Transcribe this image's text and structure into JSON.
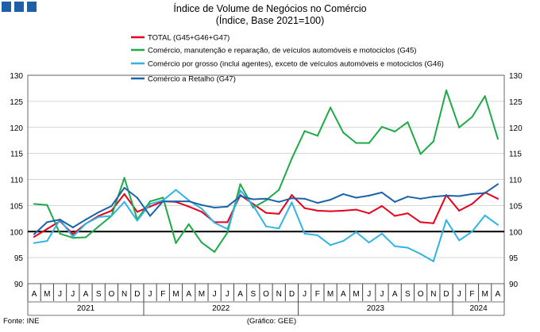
{
  "header": {
    "squares": [
      "brand-square",
      "brand-square",
      "brand-square"
    ],
    "square_color": "#1f5fa8"
  },
  "chart_data": {
    "type": "line",
    "title": "Índice de Volume de Negócios no Comércio",
    "subtitle": "(Índice, Base 2021=100)",
    "ylim": [
      90,
      130
    ],
    "yticks": [
      90,
      95,
      100,
      105,
      110,
      115,
      120,
      125,
      130
    ],
    "reference_line": 100,
    "grid": "horizontal",
    "legend_position": "top",
    "categories": [
      "A",
      "M",
      "J",
      "J",
      "A",
      "S",
      "O",
      "N",
      "D",
      "J",
      "F",
      "M",
      "A",
      "M",
      "J",
      "J",
      "A",
      "S",
      "O",
      "N",
      "D",
      "J",
      "F",
      "M",
      "A",
      "M",
      "J",
      "J",
      "A",
      "S",
      "O",
      "N",
      "D",
      "J",
      "F",
      "M",
      "A"
    ],
    "year_labels": [
      {
        "label": "2021",
        "start": 0,
        "end": 8
      },
      {
        "label": "2022",
        "start": 9,
        "end": 20
      },
      {
        "label": "2023",
        "start": 21,
        "end": 32
      },
      {
        "label": "2024",
        "start": 33,
        "end": 36
      }
    ],
    "series": [
      {
        "name": "TOTAL (G45+G46+G47)",
        "color": "#e8001c",
        "values": [
          99.0,
          100.5,
          102.0,
          99.5,
          101.5,
          103.0,
          104.0,
          107.2,
          103.8,
          104.8,
          105.8,
          105.7,
          104.8,
          103.8,
          101.8,
          101.8,
          107.0,
          105.3,
          103.6,
          103.4,
          107.0,
          104.5,
          104.0,
          103.9,
          104.0,
          104.2,
          103.5,
          104.9,
          103.0,
          103.5,
          101.8,
          101.6,
          107.0,
          104.0,
          105.3,
          107.5,
          106.3
        ]
      },
      {
        "name": "Comércio, manutenção e reparação, de veículos automóveis e motociclos (G45)",
        "color": "#1eaa48",
        "values": [
          105.3,
          105.1,
          99.6,
          98.8,
          98.9,
          101.0,
          103.0,
          110.3,
          102.3,
          105.8,
          106.5,
          97.8,
          101.4,
          97.9,
          96.1,
          99.8,
          109.1,
          104.6,
          106.0,
          108.0,
          114.0,
          119.3,
          118.4,
          123.8,
          119.0,
          117.0,
          117.0,
          120.1,
          119.2,
          121.0,
          114.9,
          117.3,
          127.1,
          120.0,
          122.0,
          126.0,
          117.8
        ]
      },
      {
        "name": "Comércio por grosso (inclui agentes), exceto de veículos automóveis e motociclos (G46)",
        "color": "#2eb4e6",
        "values": [
          97.8,
          98.2,
          102.3,
          99.0,
          101.5,
          102.8,
          103.0,
          105.7,
          102.1,
          105.3,
          106.0,
          108.0,
          106.0,
          104.4,
          101.7,
          100.5,
          107.9,
          105.0,
          101.0,
          100.6,
          105.6,
          99.6,
          99.3,
          97.4,
          98.2,
          99.9,
          97.9,
          99.6,
          97.2,
          96.9,
          95.7,
          94.3,
          102.2,
          98.3,
          100.0,
          103.1,
          101.3
        ]
      },
      {
        "name": "Comércio a Retalho (G47)",
        "color": "#1b63a9",
        "values": [
          99.5,
          101.8,
          102.3,
          100.8,
          102.3,
          103.7,
          104.9,
          108.4,
          106.5,
          103.0,
          105.8,
          105.8,
          105.8,
          105.1,
          104.6,
          104.8,
          106.8,
          106.2,
          106.3,
          105.7,
          106.4,
          106.3,
          105.5,
          106.1,
          107.2,
          106.5,
          106.9,
          107.5,
          105.7,
          106.7,
          106.3,
          106.7,
          106.9,
          106.8,
          107.2,
          107.4,
          109.1
        ]
      }
    ]
  },
  "footer": {
    "source": "Fonte: INE",
    "credit": "(Gráfico: GEE)"
  }
}
